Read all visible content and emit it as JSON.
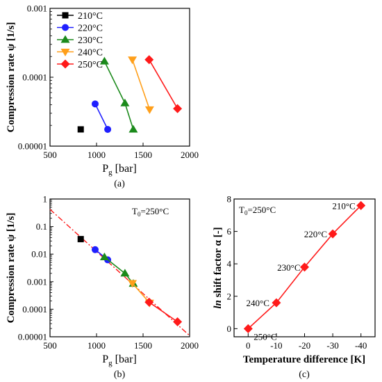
{
  "chart_data": [
    {
      "type": "line",
      "panel_label": "(a)",
      "ylabel": "Compression rate ψ [1/s]",
      "xlabel": "P",
      "xlabel_sub": "g",
      "xlabel_unit": " [bar]",
      "yscale": "log",
      "xlim": [
        500,
        2000
      ],
      "ylim": [
        1e-05,
        0.001
      ],
      "x_ticks": [
        500,
        1000,
        1500,
        2000
      ],
      "x_tick_labels": [
        "500",
        "1000",
        "1500",
        "2000"
      ],
      "y_ticks": [
        1e-05,
        0.0001,
        0.001
      ],
      "y_tick_labels": [
        "0.00001",
        "0.0001",
        "0.001"
      ],
      "legend_position": "top-left",
      "series": [
        {
          "name": "210°C",
          "color": "#000000",
          "marker": "square",
          "points": [
            [
              830,
              1.75e-05
            ]
          ]
        },
        {
          "name": "220°C",
          "color": "#1f1fff",
          "marker": "circle",
          "points": [
            [
              985,
              4.1e-05
            ],
            [
              1120,
              1.75e-05
            ]
          ]
        },
        {
          "name": "230°C",
          "color": "#1b8a1b",
          "marker": "triangle-up",
          "points": [
            [
              1085,
              0.00017
            ],
            [
              1305,
              4.2e-05
            ],
            [
              1395,
              1.75e-05
            ]
          ]
        },
        {
          "name": "240°C",
          "color": "#ff9f1a",
          "marker": "triangle-down",
          "points": [
            [
              1385,
              0.00018
            ],
            [
              1570,
              3.4e-05
            ]
          ]
        },
        {
          "name": "250°C",
          "color": "#ff1a1a",
          "marker": "diamond",
          "points": [
            [
              1565,
              0.00018
            ],
            [
              1870,
              3.5e-05
            ]
          ]
        }
      ]
    },
    {
      "type": "line",
      "panel_label": "(b)",
      "annotation": "T",
      "annotation_sub": "0",
      "annotation_rest": "=250°C",
      "ylabel": "Compression rate ψ [1/s]",
      "xlabel": "P",
      "xlabel_sub": "g",
      "xlabel_unit": " [bar]",
      "yscale": "log",
      "xlim": [
        500,
        2000
      ],
      "ylim": [
        1e-05,
        1
      ],
      "x_ticks": [
        500,
        1000,
        1500,
        2000
      ],
      "x_tick_labels": [
        "500",
        "1000",
        "1500",
        "2000"
      ],
      "y_ticks": [
        1e-05,
        0.0001,
        0.001,
        0.01,
        0.1,
        1
      ],
      "y_tick_labels": [
        "0.00001",
        "0.0001",
        "0.001",
        "0.01",
        "0.1",
        "1"
      ],
      "fit_line": {
        "color": "#ff1a1a",
        "points": [
          [
            500,
            0.42
          ],
          [
            2000,
            1.1e-05
          ]
        ]
      },
      "series": [
        {
          "color": "#000000",
          "marker": "square",
          "points": [
            [
              830,
              0.035
            ]
          ]
        },
        {
          "color": "#1f1fff",
          "marker": "circle",
          "points": [
            [
              985,
              0.0145
            ],
            [
              1120,
              0.0062
            ]
          ]
        },
        {
          "color": "#1b8a1b",
          "marker": "triangle-up",
          "points": [
            [
              1085,
              0.0078
            ],
            [
              1305,
              0.002
            ],
            [
              1395,
              0.00085
            ]
          ]
        },
        {
          "color": "#ff9f1a",
          "marker": "triangle-down",
          "points": [
            [
              1385,
              0.00088
            ],
            [
              1570,
              0.00017
            ]
          ]
        },
        {
          "color": "#ff1a1a",
          "marker": "diamond",
          "points": [
            [
              1565,
              0.00018
            ],
            [
              1870,
              3.5e-05
            ]
          ]
        }
      ]
    },
    {
      "type": "line",
      "panel_label": "(c)",
      "annotation": "T",
      "annotation_sub": "0",
      "annotation_rest": "=250°C",
      "ylabel_italic": "ln",
      "ylabel": " shift factor α [-]",
      "xlabel": "Temperature difference [K]",
      "xlim": [
        5,
        -45
      ],
      "ylim": [
        -0.5,
        8
      ],
      "x_ticks": [
        0,
        -10,
        -20,
        -30,
        -40
      ],
      "x_tick_labels": [
        "0",
        "-10",
        "-20",
        "-30",
        "-40"
      ],
      "y_ticks": [
        0,
        2,
        4,
        6,
        8
      ],
      "y_tick_labels": [
        "0",
        "2",
        "4",
        "6",
        "8"
      ],
      "series": [
        {
          "color": "#ff1a1a",
          "marker": "diamond",
          "points": [
            [
              0,
              0
            ],
            [
              -10,
              1.6
            ],
            [
              -20,
              3.8
            ],
            [
              -30,
              5.85
            ],
            [
              -40,
              7.6
            ]
          ],
          "point_labels": [
            "250°C",
            "240°C",
            "230°C",
            "220°C",
            "210°C"
          ]
        }
      ]
    }
  ]
}
